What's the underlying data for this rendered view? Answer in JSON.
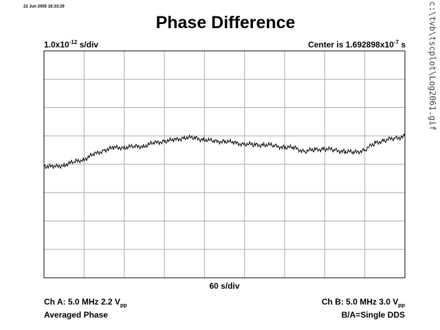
{
  "timestamp": "22 Jun 2005 18:33:29",
  "side_label": "c:\\tvb\\tscplot\\Log2061.gif",
  "chart_data": {
    "type": "line",
    "title": "Phase Difference",
    "ylabel": {
      "prefix": "1.0x10",
      "exp": "-12",
      "suffix": " s/div"
    },
    "center": {
      "prefix": "Center is 1.692898x10",
      "exp": "-7",
      "suffix": " s"
    },
    "xlabel": "60 s/div",
    "grid": {
      "x_divisions": 9,
      "y_divisions": 8
    },
    "x_range": [
      0,
      540
    ],
    "y_range_div": [
      -4,
      4
    ],
    "series": [
      {
        "x": [
          0,
          15,
          30,
          45,
          60,
          75,
          90,
          105,
          120,
          135,
          150,
          165,
          180,
          195,
          210,
          225,
          240,
          255,
          270,
          285,
          300,
          315,
          330,
          345,
          360,
          375,
          390,
          405,
          420,
          435,
          450,
          465,
          480,
          495,
          510,
          525,
          540
        ],
        "y": [
          -0.05,
          -0.1,
          -0.02,
          0.08,
          0.18,
          0.35,
          0.5,
          0.58,
          0.6,
          0.62,
          0.65,
          0.75,
          0.82,
          0.85,
          0.95,
          0.92,
          0.88,
          0.8,
          0.82,
          0.75,
          0.72,
          0.68,
          0.7,
          0.65,
          0.6,
          0.58,
          0.45,
          0.52,
          0.55,
          0.5,
          0.45,
          0.42,
          0.5,
          0.75,
          0.85,
          0.92,
          0.98
        ]
      }
    ]
  },
  "footer": {
    "ch_a_line1_prefix": "Ch A: 5.0 MHz 2.2 V",
    "ch_a_line1_sub": "pp",
    "ch_a_line2": "Averaged Phase",
    "ch_b_line1_prefix": "Ch B: 5.0 MHz 3.0 V",
    "ch_b_line1_sub": "pp",
    "ch_b_line2": "B/A=Single DDS"
  }
}
